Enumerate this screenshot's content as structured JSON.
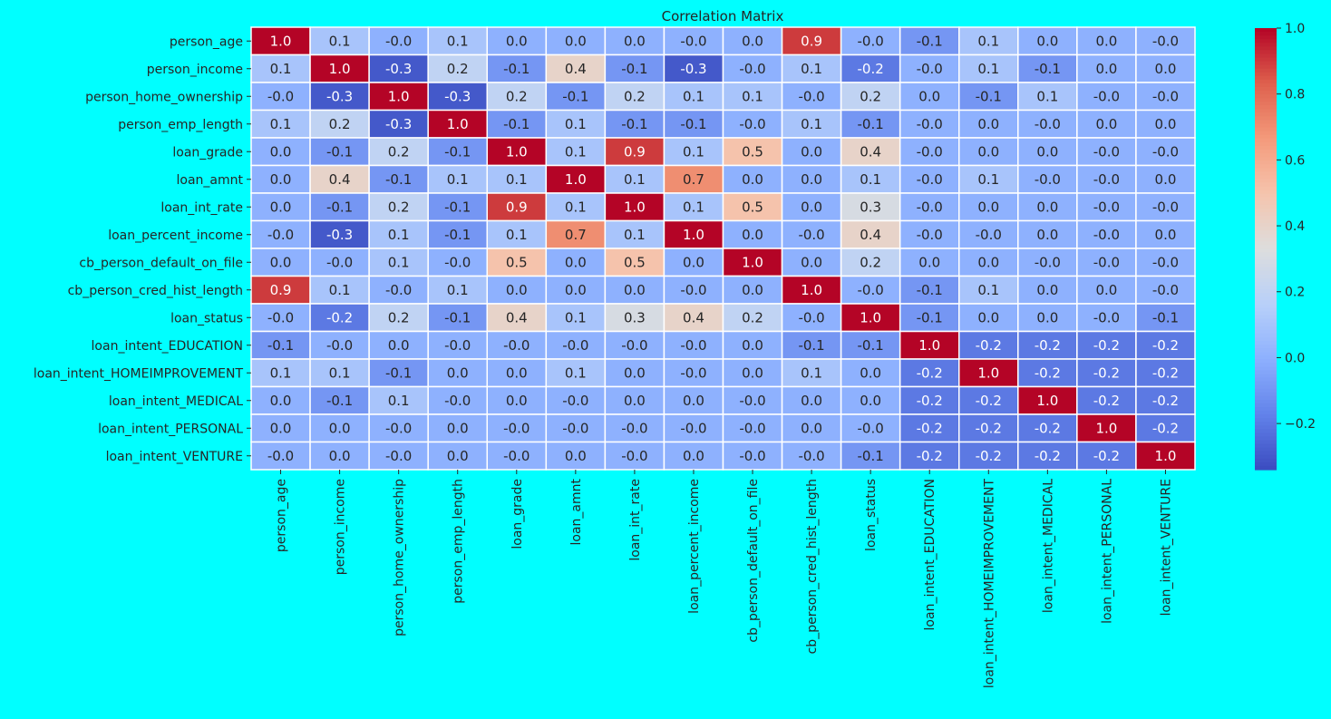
{
  "chart_data": {
    "type": "heatmap",
    "title": "Correlation Matrix",
    "xlabel": "",
    "ylabel": "",
    "labels": [
      "person_age",
      "person_income",
      "person_home_ownership",
      "person_emp_length",
      "loan_grade",
      "loan_amnt",
      "loan_int_rate",
      "loan_percent_income",
      "cb_person_default_on_file",
      "cb_person_cred_hist_length",
      "loan_status",
      "loan_intent_EDUCATION",
      "loan_intent_HOMEIMPROVEMENT",
      "loan_intent_MEDICAL",
      "loan_intent_PERSONAL",
      "loan_intent_VENTURE"
    ],
    "values": [
      [
        1.0,
        0.1,
        -0.0,
        0.1,
        0.0,
        0.0,
        0.0,
        -0.0,
        0.0,
        0.9,
        -0.0,
        -0.1,
        0.1,
        0.0,
        0.0,
        -0.0
      ],
      [
        0.1,
        1.0,
        -0.3,
        0.2,
        -0.1,
        0.4,
        -0.1,
        -0.3,
        -0.0,
        0.1,
        -0.2,
        -0.0,
        0.1,
        -0.1,
        0.0,
        0.0
      ],
      [
        -0.0,
        -0.3,
        1.0,
        -0.3,
        0.2,
        -0.1,
        0.2,
        0.1,
        0.1,
        -0.0,
        0.2,
        0.0,
        -0.1,
        0.1,
        -0.0,
        -0.0
      ],
      [
        0.1,
        0.2,
        -0.3,
        1.0,
        -0.1,
        0.1,
        -0.1,
        -0.1,
        -0.0,
        0.1,
        -0.1,
        -0.0,
        0.0,
        -0.0,
        0.0,
        0.0
      ],
      [
        0.0,
        -0.1,
        0.2,
        -0.1,
        1.0,
        0.1,
        0.9,
        0.1,
        0.5,
        0.0,
        0.4,
        -0.0,
        0.0,
        0.0,
        -0.0,
        -0.0
      ],
      [
        0.0,
        0.4,
        -0.1,
        0.1,
        0.1,
        1.0,
        0.1,
        0.7,
        0.0,
        0.0,
        0.1,
        -0.0,
        0.1,
        -0.0,
        -0.0,
        0.0
      ],
      [
        0.0,
        -0.1,
        0.2,
        -0.1,
        0.9,
        0.1,
        1.0,
        0.1,
        0.5,
        0.0,
        0.3,
        -0.0,
        0.0,
        0.0,
        -0.0,
        -0.0
      ],
      [
        -0.0,
        -0.3,
        0.1,
        -0.1,
        0.1,
        0.7,
        0.1,
        1.0,
        0.0,
        -0.0,
        0.4,
        -0.0,
        -0.0,
        0.0,
        -0.0,
        0.0
      ],
      [
        0.0,
        -0.0,
        0.1,
        -0.0,
        0.5,
        0.0,
        0.5,
        0.0,
        1.0,
        0.0,
        0.2,
        0.0,
        0.0,
        -0.0,
        -0.0,
        -0.0
      ],
      [
        0.9,
        0.1,
        -0.0,
        0.1,
        0.0,
        0.0,
        0.0,
        -0.0,
        0.0,
        1.0,
        -0.0,
        -0.1,
        0.1,
        0.0,
        0.0,
        -0.0
      ],
      [
        -0.0,
        -0.2,
        0.2,
        -0.1,
        0.4,
        0.1,
        0.3,
        0.4,
        0.2,
        -0.0,
        1.0,
        -0.1,
        0.0,
        0.0,
        -0.0,
        -0.1
      ],
      [
        -0.1,
        -0.0,
        0.0,
        -0.0,
        -0.0,
        -0.0,
        -0.0,
        -0.0,
        0.0,
        -0.1,
        -0.1,
        1.0,
        -0.2,
        -0.2,
        -0.2,
        -0.2
      ],
      [
        0.1,
        0.1,
        -0.1,
        0.0,
        0.0,
        0.1,
        0.0,
        -0.0,
        0.0,
        0.1,
        0.0,
        -0.2,
        1.0,
        -0.2,
        -0.2,
        -0.2
      ],
      [
        0.0,
        -0.1,
        0.1,
        -0.0,
        0.0,
        -0.0,
        0.0,
        0.0,
        -0.0,
        0.0,
        0.0,
        -0.2,
        -0.2,
        1.0,
        -0.2,
        -0.2
      ],
      [
        0.0,
        0.0,
        -0.0,
        0.0,
        -0.0,
        -0.0,
        -0.0,
        -0.0,
        -0.0,
        0.0,
        -0.0,
        -0.2,
        -0.2,
        -0.2,
        1.0,
        -0.2
      ],
      [
        -0.0,
        0.0,
        -0.0,
        0.0,
        -0.0,
        0.0,
        -0.0,
        0.0,
        -0.0,
        -0.0,
        -0.1,
        -0.2,
        -0.2,
        -0.2,
        -0.2,
        1.0
      ]
    ],
    "colormap": "coolwarm",
    "vmin": -0.34,
    "vmax": 1.0,
    "colorbar_ticks": [
      "−0.2",
      "0.0",
      "0.2",
      "0.4",
      "0.6",
      "0.8",
      "1.0"
    ],
    "colorbar_tick_values": [
      -0.2,
      0.0,
      0.2,
      0.4,
      0.6,
      0.8,
      1.0
    ],
    "grid": true,
    "legend": "colorbar-right"
  },
  "colors": {
    "background": "#00ffff",
    "text": "#262626",
    "cell_border": "#ffffff",
    "cold": "#3b4cc0",
    "neutral": "#dddddd",
    "warm": "#b40426"
  }
}
